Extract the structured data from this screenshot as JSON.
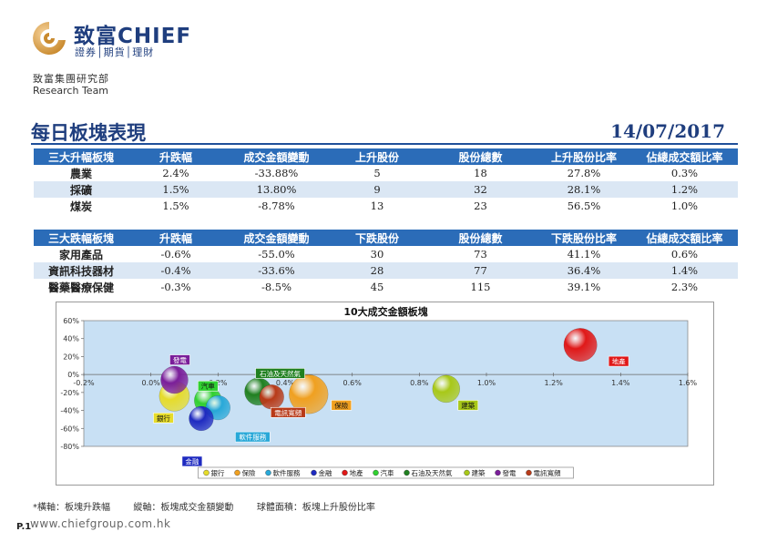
{
  "header": {
    "brand_cn": "致富CHIEF",
    "brand_sub": "證券│期貨│理財",
    "dept_cn": "致富集團研究部",
    "dept_en": "Research Team",
    "title": "每日板塊表現",
    "date": "14/07/2017"
  },
  "table_up": {
    "headers": [
      "三大升幅板塊",
      "升跌幅",
      "成交金額變動",
      "上升股份",
      "股份總數",
      "上升股份比率",
      "佔總成交額比率"
    ],
    "rows": [
      [
        "農業",
        "2.4%",
        "-33.88%",
        "5",
        "18",
        "27.8%",
        "0.3%"
      ],
      [
        "採礦",
        "1.5%",
        "13.80%",
        "9",
        "32",
        "28.1%",
        "1.2%"
      ],
      [
        "煤炭",
        "1.5%",
        "-8.78%",
        "13",
        "23",
        "56.5%",
        "1.0%"
      ]
    ]
  },
  "table_down": {
    "headers": [
      "三大跌幅板塊",
      "升跌幅",
      "成交金額變動",
      "下跌股份",
      "股份總數",
      "下跌股份比率",
      "佔總成交額比率"
    ],
    "rows": [
      [
        "家用產品",
        "-0.6%",
        "-55.0%",
        "30",
        "73",
        "41.1%",
        "0.6%"
      ],
      [
        "資訊科技器材",
        "-0.4%",
        "-33.6%",
        "28",
        "77",
        "36.4%",
        "1.4%"
      ],
      [
        "醫藥醫療保健",
        "-0.3%",
        "-8.5%",
        "45",
        "115",
        "39.1%",
        "2.3%"
      ]
    ]
  },
  "chart_data": {
    "type": "scatter",
    "subtype": "bubble",
    "title": "10大成交金額板塊",
    "xlim": [
      -0.2,
      1.6
    ],
    "ylim": [
      -80,
      60
    ],
    "x_ticks": [
      "-0.2%",
      "0.0%",
      "0.2%",
      "0.4%",
      "0.6%",
      "0.8%",
      "1.0%",
      "1.2%",
      "1.4%",
      "1.6%"
    ],
    "y_ticks": [
      "60%",
      "40%",
      "20%",
      "0%",
      "-20%",
      "-40%",
      "-60%",
      "-80%"
    ],
    "legend_position": "bottom",
    "series": [
      {
        "name": "銀行",
        "x": 0.07,
        "y": -24,
        "size": 6,
        "color": "#e6dc2a"
      },
      {
        "name": "保險",
        "x": 0.47,
        "y": -22,
        "size": 9,
        "color": "#f0a020"
      },
      {
        "name": "軟件服務",
        "x": 0.2,
        "y": -37,
        "size": 4,
        "color": "#28a8d8"
      },
      {
        "name": "金融",
        "x": 0.15,
        "y": -49,
        "size": 4,
        "color": "#1e2ac0"
      },
      {
        "name": "地產",
        "x": 1.28,
        "y": 33,
        "size": 7,
        "color": "#e01818"
      },
      {
        "name": "汽車",
        "x": 0.17,
        "y": -29,
        "size": 5,
        "color": "#30d030"
      },
      {
        "name": "石油及天然氣",
        "x": 0.32,
        "y": -19,
        "size": 5,
        "color": "#208020"
      },
      {
        "name": "建築",
        "x": 0.88,
        "y": -16,
        "size": 5,
        "color": "#a8c818"
      },
      {
        "name": "發電",
        "x": 0.07,
        "y": -6,
        "size": 5,
        "color": "#7a1e9a"
      },
      {
        "name": "電訊寬頻",
        "x": 0.36,
        "y": -25,
        "size": 4,
        "color": "#b83a18"
      }
    ]
  },
  "footnote": "*橫軸：板塊升跌幅        縱軸：板塊成交金額變動        球體面積：板塊上升股份比率",
  "page_label": "P.1",
  "url": "www.chiefgroup.com.hk"
}
